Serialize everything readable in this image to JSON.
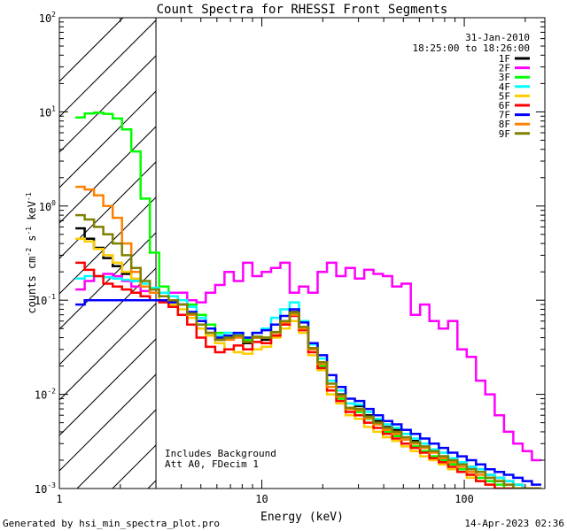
{
  "chart_data": {
    "type": "line",
    "title": "Count Spectra for RHESSI Front Segments",
    "xlabel": "Energy (keV)",
    "ylabel_parts": {
      "a": "counts cm",
      "b": "-2",
      "c": " s",
      "d": "-1",
      "e": " keV",
      "f": "-1"
    },
    "x_scale": "log",
    "y_scale": "log",
    "xlim": [
      1,
      250
    ],
    "ylim": [
      0.001,
      100
    ],
    "x_ticks": [
      {
        "value": 1,
        "label": "1"
      },
      {
        "value": 10,
        "label": "10"
      },
      {
        "value": 100,
        "label": "100"
      }
    ],
    "y_ticks": [
      {
        "value": 0.001,
        "base": "10",
        "exp": "-3"
      },
      {
        "value": 0.01,
        "base": "10",
        "exp": "-2"
      },
      {
        "value": 0.1,
        "base": "10",
        "exp": "-1"
      },
      {
        "value": 1,
        "base": "10",
        "exp": "0"
      },
      {
        "value": 10,
        "base": "10",
        "exp": "1"
      },
      {
        "value": 100,
        "base": "10",
        "exp": "2"
      }
    ],
    "attenuator_region_keV": [
      1,
      3
    ],
    "date": "31-Jan-2010",
    "time_range": "18:25:00 to 18:26:00",
    "notes": [
      "Includes Background",
      "Att A0, FDecim 1"
    ],
    "legend_position": "top-right",
    "series": [
      {
        "name": "1F",
        "color": "#000000",
        "values": [
          0.58,
          0.45,
          0.36,
          0.28,
          0.23,
          0.19,
          0.16,
          0.14,
          0.12,
          0.11,
          0.1,
          0.09,
          0.07,
          0.055,
          0.045,
          0.038,
          0.04,
          0.042,
          0.035,
          0.04,
          0.038,
          0.045,
          0.06,
          0.075,
          0.05,
          0.03,
          0.022,
          0.012,
          0.01,
          0.007,
          0.0075,
          0.006,
          0.0052,
          0.0045,
          0.0042,
          0.0038,
          0.0032,
          0.003,
          0.0026,
          0.0022,
          0.0021,
          0.0019,
          0.0017,
          0.0015,
          0.0014,
          0.0013,
          0.0012,
          0.0011,
          0.001,
          0.001
        ]
      },
      {
        "name": "2F",
        "color": "#ff00ff",
        "values": [
          0.13,
          0.16,
          0.18,
          0.19,
          0.18,
          0.16,
          0.14,
          0.125,
          0.12,
          0.12,
          0.12,
          0.12,
          0.1,
          0.095,
          0.12,
          0.145,
          0.2,
          0.16,
          0.25,
          0.18,
          0.2,
          0.22,
          0.25,
          0.12,
          0.14,
          0.12,
          0.2,
          0.25,
          0.18,
          0.22,
          0.17,
          0.21,
          0.19,
          0.18,
          0.14,
          0.15,
          0.07,
          0.09,
          0.06,
          0.05,
          0.06,
          0.03,
          0.025,
          0.014,
          0.01,
          0.006,
          0.004,
          0.003,
          0.0025,
          0.002
        ]
      },
      {
        "name": "3F",
        "color": "#00ff00",
        "values": [
          8.7,
          9.6,
          9.8,
          9.5,
          8.5,
          6.5,
          3.8,
          1.2,
          0.32,
          0.14,
          0.1,
          0.1,
          0.09,
          0.07,
          0.055,
          0.045,
          0.04,
          0.042,
          0.038,
          0.04,
          0.04,
          0.045,
          0.058,
          0.072,
          0.05,
          0.03,
          0.02,
          0.012,
          0.009,
          0.007,
          0.0065,
          0.0055,
          0.0048,
          0.004,
          0.0036,
          0.003,
          0.0028,
          0.0025,
          0.0022,
          0.002,
          0.0018,
          0.0016,
          0.0014,
          0.0013,
          0.0012,
          0.0011,
          0.001,
          0.001,
          0.001,
          0.001
        ]
      },
      {
        "name": "4F",
        "color": "#00ffff",
        "values": [
          0.17,
          0.18,
          0.18,
          0.175,
          0.17,
          0.165,
          0.16,
          0.15,
          0.135,
          0.12,
          0.11,
          0.1,
          0.085,
          0.065,
          0.05,
          0.042,
          0.045,
          0.044,
          0.04,
          0.045,
          0.05,
          0.065,
          0.08,
          0.095,
          0.06,
          0.034,
          0.024,
          0.014,
          0.011,
          0.008,
          0.0078,
          0.0065,
          0.0055,
          0.0048,
          0.0044,
          0.0038,
          0.0034,
          0.003,
          0.0026,
          0.0024,
          0.0021,
          0.0019,
          0.0017,
          0.0016,
          0.0014,
          0.0013,
          0.0012,
          0.0011,
          0.001,
          0.001
        ]
      },
      {
        "name": "5F",
        "color": "#ffcc00",
        "values": [
          0.45,
          0.42,
          0.35,
          0.3,
          0.25,
          0.2,
          0.17,
          0.14,
          0.12,
          0.1,
          0.09,
          0.08,
          0.065,
          0.05,
          0.042,
          0.035,
          0.03,
          0.028,
          0.027,
          0.03,
          0.032,
          0.04,
          0.05,
          0.06,
          0.045,
          0.026,
          0.018,
          0.01,
          0.008,
          0.006,
          0.0055,
          0.0045,
          0.004,
          0.0035,
          0.0032,
          0.0028,
          0.0025,
          0.0022,
          0.002,
          0.0018,
          0.0016,
          0.0015,
          0.0013,
          0.0012,
          0.0011,
          0.001,
          0.001,
          0.001,
          0.001,
          0.001
        ]
      },
      {
        "name": "6F",
        "color": "#ff0000",
        "values": [
          0.25,
          0.21,
          0.18,
          0.15,
          0.14,
          0.13,
          0.12,
          0.11,
          0.1,
          0.095,
          0.085,
          0.07,
          0.055,
          0.04,
          0.032,
          0.028,
          0.03,
          0.033,
          0.03,
          0.036,
          0.035,
          0.042,
          0.055,
          0.068,
          0.048,
          0.028,
          0.019,
          0.011,
          0.0085,
          0.0065,
          0.006,
          0.005,
          0.0044,
          0.0038,
          0.0034,
          0.003,
          0.0027,
          0.0024,
          0.0021,
          0.0019,
          0.0017,
          0.0015,
          0.0014,
          0.0012,
          0.0011,
          0.001,
          0.001,
          0.001,
          0.001,
          0.001
        ]
      },
      {
        "name": "7F",
        "color": "#0000ff",
        "values": [
          0.09,
          0.1,
          0.1,
          0.1,
          0.1,
          0.1,
          0.1,
          0.1,
          0.1,
          0.1,
          0.095,
          0.09,
          0.075,
          0.06,
          0.05,
          0.04,
          0.042,
          0.045,
          0.04,
          0.045,
          0.048,
          0.055,
          0.068,
          0.08,
          0.058,
          0.035,
          0.026,
          0.016,
          0.012,
          0.009,
          0.0085,
          0.007,
          0.006,
          0.0052,
          0.0048,
          0.0042,
          0.0038,
          0.0034,
          0.003,
          0.0027,
          0.0024,
          0.0022,
          0.002,
          0.0018,
          0.0016,
          0.0015,
          0.0014,
          0.0013,
          0.0012,
          0.0011
        ]
      },
      {
        "name": "8F",
        "color": "#ff8000",
        "values": [
          1.6,
          1.5,
          1.3,
          1.0,
          0.75,
          0.4,
          0.2,
          0.14,
          0.12,
          0.11,
          0.1,
          0.09,
          0.07,
          0.055,
          0.045,
          0.038,
          0.038,
          0.04,
          0.036,
          0.04,
          0.04,
          0.045,
          0.058,
          0.07,
          0.05,
          0.03,
          0.021,
          0.012,
          0.0095,
          0.007,
          0.0068,
          0.0056,
          0.0048,
          0.0042,
          0.0038,
          0.0033,
          0.003,
          0.0027,
          0.0024,
          0.0021,
          0.0019,
          0.0017,
          0.0015,
          0.0014,
          0.0013,
          0.0012,
          0.0011,
          0.001,
          0.001,
          0.001
        ]
      },
      {
        "name": "9F",
        "color": "#808000",
        "values": [
          0.8,
          0.72,
          0.6,
          0.5,
          0.4,
          0.3,
          0.22,
          0.16,
          0.13,
          0.11,
          0.1,
          0.09,
          0.072,
          0.055,
          0.045,
          0.038,
          0.04,
          0.042,
          0.036,
          0.041,
          0.04,
          0.046,
          0.06,
          0.074,
          0.052,
          0.031,
          0.022,
          0.013,
          0.0098,
          0.0072,
          0.007,
          0.0058,
          0.005,
          0.0044,
          0.004,
          0.0035,
          0.0031,
          0.0028,
          0.0025,
          0.0022,
          0.002,
          0.0018,
          0.0016,
          0.0015,
          0.0013,
          0.0012,
          0.0011,
          0.001,
          0.001,
          0.001
        ]
      }
    ]
  },
  "footer": {
    "generated_by": "Generated by hsi_min_spectra_plot.pro",
    "date": "14-Apr-2023 02:36"
  }
}
